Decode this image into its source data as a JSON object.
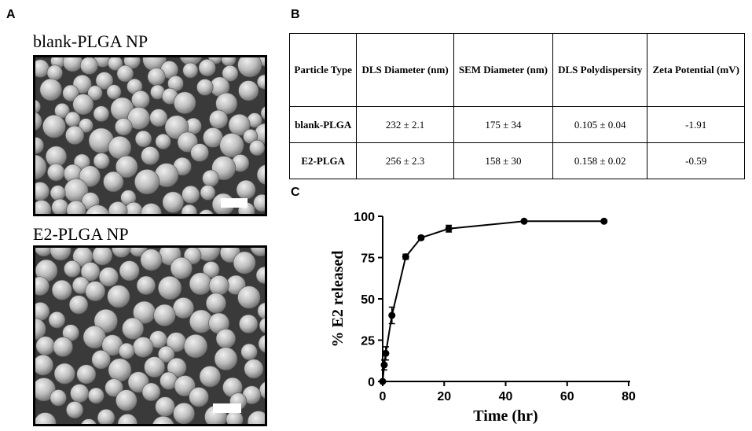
{
  "panels": {
    "a": {
      "letter": "A"
    },
    "b": {
      "letter": "B"
    },
    "c": {
      "letter": "C"
    }
  },
  "images": [
    {
      "label": "blank-PLGA NP"
    },
    {
      "label": "E2-PLGA NP"
    }
  ],
  "table": {
    "headers": [
      "Particle Type",
      "DLS Diameter (nm)",
      "SEM Diameter (nm)",
      "DLS Polydispersity",
      "Zeta Potential (mV)"
    ],
    "rows": [
      [
        "blank-PLGA",
        "232 ± 2.1",
        "175 ± 34",
        "0.105 ± 0.04",
        "-1.91"
      ],
      [
        "E2-PLGA",
        "256 ± 2.3",
        "158 ± 30",
        "0.158 ± 0.02",
        "-0.59"
      ]
    ]
  },
  "chart_data": {
    "type": "line",
    "xlabel": "Time (hr)",
    "ylabel": "% E2 released",
    "xlim": [
      0,
      80
    ],
    "ylim": [
      0,
      100
    ],
    "xticks": [
      0,
      20,
      40,
      60,
      80
    ],
    "yticks": [
      0,
      25,
      50,
      75,
      100
    ],
    "grid": false,
    "series": [
      {
        "x": [
          0,
          0.5,
          1,
          3,
          7.5,
          12.5,
          21.5,
          46,
          72
        ],
        "y": [
          0,
          10,
          17,
          40,
          75.5,
          87,
          92.5,
          97,
          97
        ],
        "error": [
          0,
          3,
          4,
          5,
          1.5,
          1,
          2,
          0.5,
          0.5
        ]
      }
    ]
  }
}
